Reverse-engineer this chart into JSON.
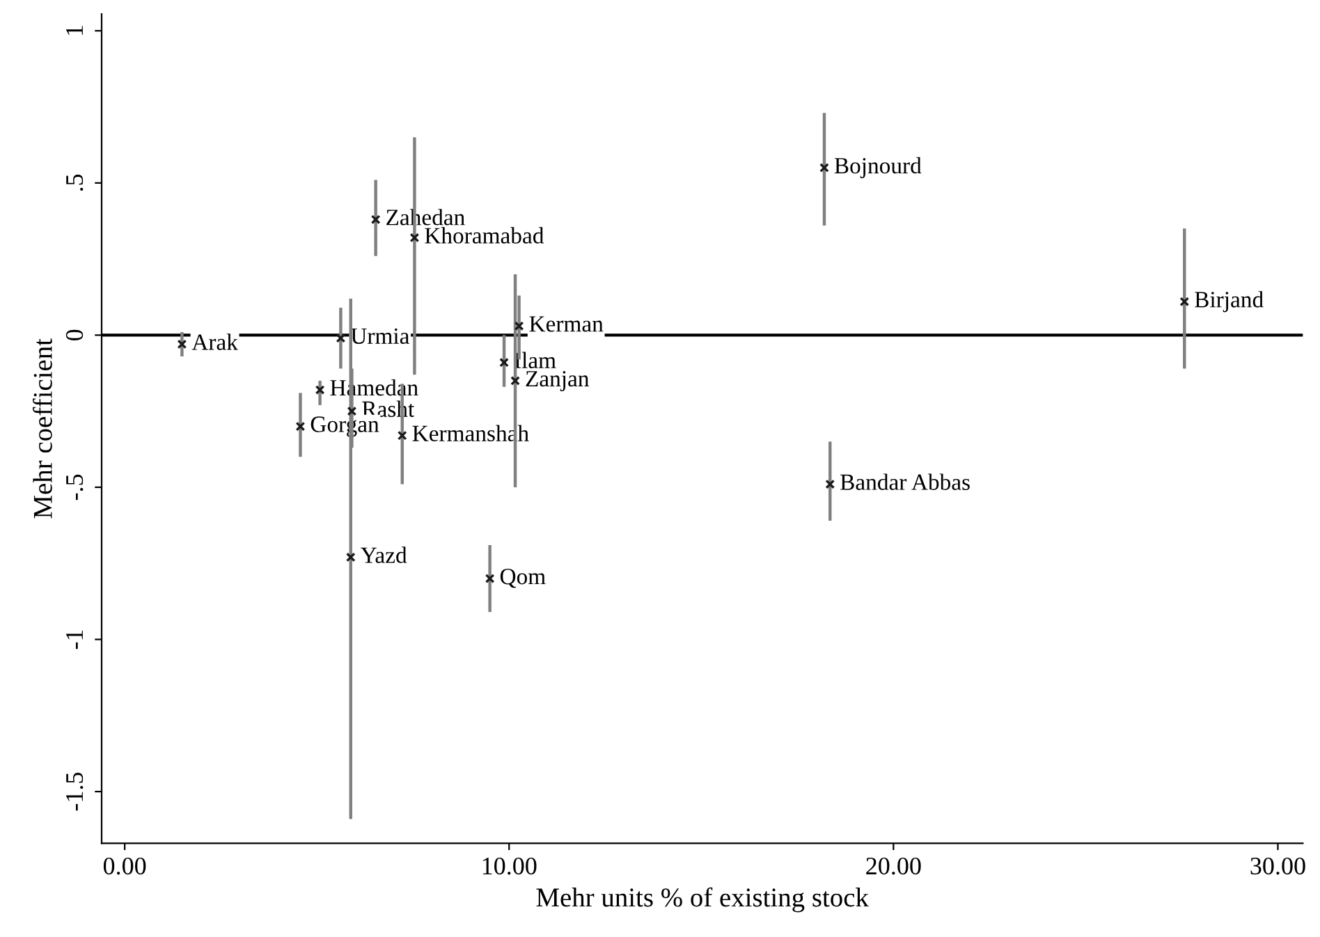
{
  "chart_data": {
    "type": "scatter",
    "xlabel": "Mehr units % of existing stock",
    "ylabel": "Mehr coefficient",
    "x": [
      1.49,
      5.62,
      6.53,
      7.54,
      5.08,
      5.91,
      5.88,
      4.57,
      7.22,
      10.26,
      9.87,
      10.16,
      9.5,
      18.2,
      27.57,
      18.35
    ],
    "values": [
      -0.03,
      -0.01,
      0.38,
      0.32,
      -0.18,
      -0.25,
      -0.73,
      -0.3,
      -0.33,
      0.03,
      -0.09,
      -0.15,
      -0.8,
      0.55,
      0.11,
      -0.49
    ],
    "errors": [
      [
        -0.07,
        0.01
      ],
      [
        -0.11,
        0.09
      ],
      [
        0.26,
        0.51
      ],
      [
        -0.13,
        0.65
      ],
      [
        -0.23,
        -0.15
      ],
      [
        -0.37,
        -0.11
      ],
      [
        -1.59,
        0.12
      ],
      [
        -0.4,
        -0.19
      ],
      [
        -0.49,
        -0.16
      ],
      [
        -0.08,
        0.13
      ],
      [
        -0.17,
        0
      ],
      [
        -0.5,
        0.2
      ],
      [
        -0.91,
        -0.69
      ],
      [
        0.36,
        0.73
      ],
      [
        -0.11,
        0.35
      ],
      [
        -0.61,
        -0.35
      ]
    ],
    "color": "#1a1a1a",
    "marker": "cross",
    "xlim": [
      -0.6,
      30.65
    ],
    "ylim": [
      -1.67,
      1.055
    ],
    "xticks": [
      {
        "value": 0,
        "label": "0.00"
      },
      {
        "value": 10,
        "label": "10.00"
      },
      {
        "value": 20,
        "label": "20.00"
      },
      {
        "value": 30,
        "label": "30.00"
      }
    ],
    "yticks": [
      {
        "value": -1.5,
        "label": "-1.5"
      },
      {
        "value": -1,
        "label": "-1"
      },
      {
        "value": -0.5,
        "label": "-.5"
      },
      0,
      {
        "value": 0.5,
        "label": ".5"
      },
      1
    ],
    "grid": false,
    "legend": false,
    "ref_lines": [
      {
        "axis": "y",
        "value": 0,
        "color": "#000000"
      }
    ],
    "annotations": [
      {
        "text": "Arak",
        "x": 1.49,
        "y": -0.03
      },
      {
        "text": "Urmia",
        "x": 5.62,
        "y": -0.01
      },
      {
        "text": "Zahedan",
        "x": 6.53,
        "y": 0.38
      },
      {
        "text": "Khoramabad",
        "x": 7.54,
        "y": 0.32
      },
      {
        "text": "Hamedan",
        "x": 5.08,
        "y": -0.18
      },
      {
        "text": "Rasht",
        "x": 5.91,
        "y": -0.25
      },
      {
        "text": "Yazd",
        "x": 5.88,
        "y": -0.73
      },
      {
        "text": "Gorgan",
        "x": 4.57,
        "y": -0.3
      },
      {
        "text": "Kermanshah",
        "x": 7.22,
        "y": -0.33
      },
      {
        "text": "Kerman",
        "x": 10.26,
        "y": 0.03
      },
      {
        "text": "Ilam",
        "x": 9.87,
        "y": -0.09
      },
      {
        "text": "Zanjan",
        "x": 10.16,
        "y": -0.15
      },
      {
        "text": "Qom",
        "x": 9.5,
        "y": -0.8
      },
      {
        "text": "Bojnourd",
        "x": 18.2,
        "y": 0.55
      },
      {
        "text": "Birjand",
        "x": 27.57,
        "y": 0.11
      },
      {
        "text": "Bandar Abbas",
        "x": 18.35,
        "y": -0.49
      }
    ]
  }
}
